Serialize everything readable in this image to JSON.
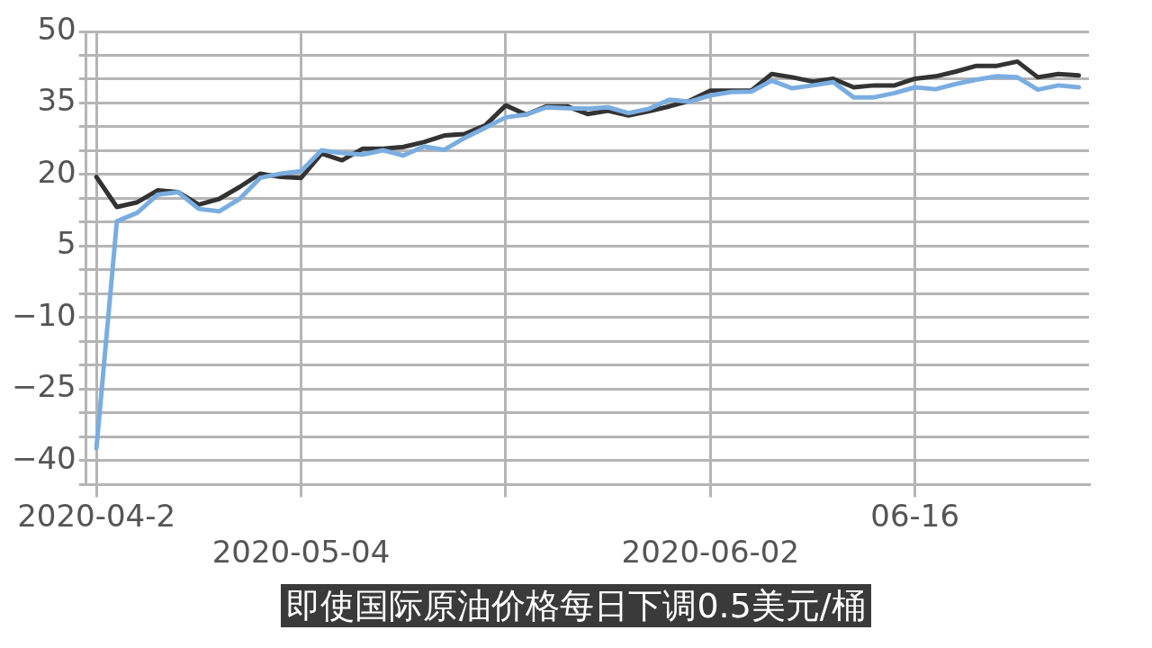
{
  "chart_data": {
    "type": "line",
    "categories": [
      "2020-04-2",
      null,
      null,
      null,
      null,
      null,
      null,
      null,
      null,
      null,
      "2020-05-04",
      null,
      null,
      null,
      null,
      null,
      null,
      null,
      null,
      null,
      null,
      null,
      null,
      null,
      null,
      null,
      null,
      null,
      null,
      null,
      "2020-06-02",
      null,
      null,
      null,
      null,
      null,
      null,
      null,
      null,
      null,
      "06-16",
      null,
      null,
      null,
      null,
      null,
      null,
      null,
      null
    ],
    "series": [
      {
        "color": "#7aade0",
        "values": [
          -37.4,
          10.2,
          12.0,
          15.8,
          16.3,
          12.8,
          12.3,
          14.9,
          19.3,
          20.2,
          20.7,
          25.1,
          24.5,
          24.2,
          25.1,
          24.0,
          25.9,
          25.2,
          27.7,
          29.8,
          32.0,
          32.6,
          34.1,
          33.9,
          33.8,
          34.1,
          32.9,
          33.8,
          35.7,
          35.3,
          36.6,
          37.3,
          37.4,
          39.7,
          38.1,
          38.7,
          39.4,
          36.2,
          36.2,
          37.1,
          38.3,
          37.9,
          39.0,
          39.9,
          40.6,
          40.4,
          37.8,
          38.7,
          38.3
        ]
      },
      {
        "color": "#333333",
        "values": [
          19.5,
          13.2,
          14.2,
          16.7,
          16.3,
          13.7,
          14.9,
          17.4,
          20.2,
          19.5,
          19.3,
          24.4,
          23.0,
          25.4,
          25.4,
          25.8,
          26.8,
          28.2,
          28.5,
          30.3,
          34.5,
          32.6,
          34.3,
          34.3,
          32.7,
          33.4,
          32.4,
          33.3,
          34.3,
          35.5,
          37.6,
          37.6,
          37.6,
          41.1,
          40.4,
          39.5,
          40.1,
          38.3,
          38.7,
          38.7,
          40.1,
          40.6,
          41.6,
          42.8,
          42.8,
          43.7,
          40.4,
          41.1,
          40.8
        ]
      }
    ],
    "ylim": [
      -45,
      50
    ],
    "yticks": [
      {
        "value": -45,
        "label": null
      },
      -40,
      {
        "value": -35,
        "label": null
      },
      {
        "value": -30,
        "label": null
      },
      -25,
      {
        "value": -20,
        "label": null
      },
      {
        "value": -15,
        "label": null
      },
      -10,
      {
        "value": -5,
        "label": null
      },
      {
        "value": 0,
        "label": null
      },
      5,
      {
        "value": 10,
        "label": null
      },
      {
        "value": 15,
        "label": null
      },
      20,
      {
        "value": 25,
        "label": null
      },
      {
        "value": 30,
        "label": null
      },
      35,
      {
        "value": 40,
        "label": null
      },
      {
        "value": 45,
        "label": null
      },
      50
    ],
    "grid": true,
    "legend": false,
    "marker": "none",
    "line_style": "solid",
    "annotations": [
      "即使国际原油价格每日下调0.5美元/桶"
    ]
  }
}
